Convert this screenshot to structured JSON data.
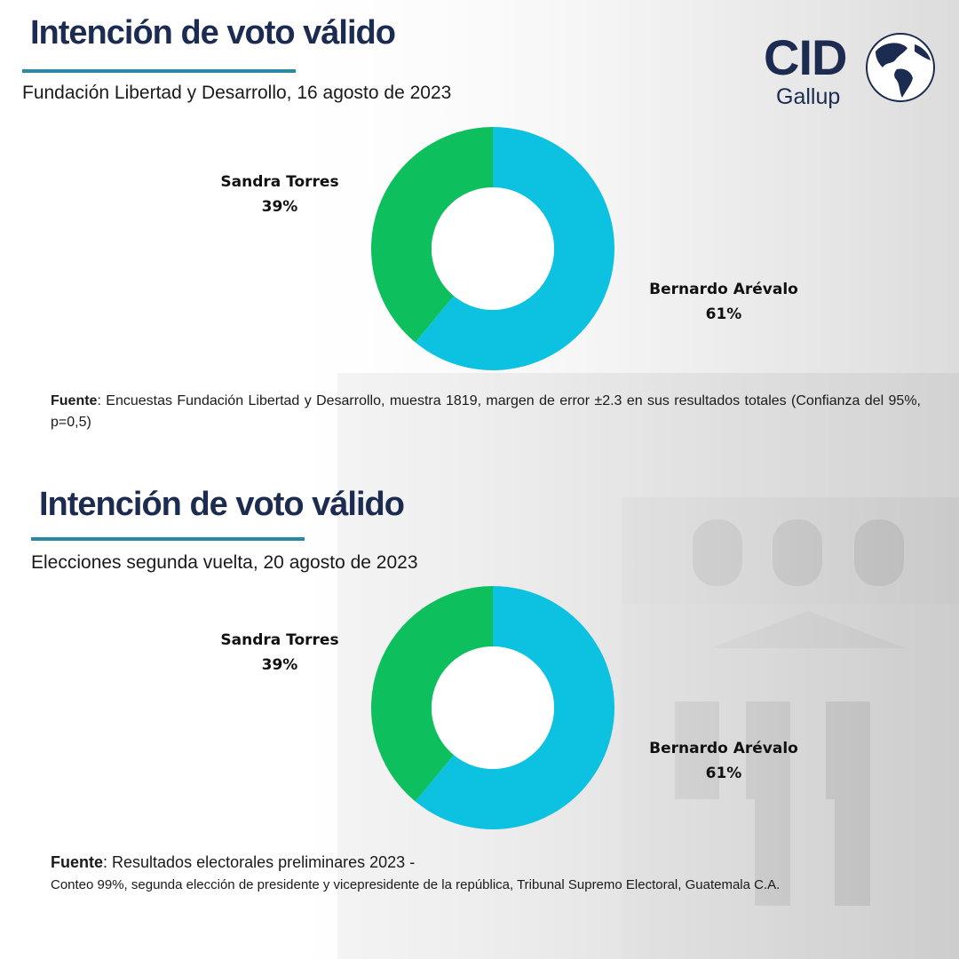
{
  "logo": {
    "main": "CID",
    "sub": "Gallup"
  },
  "colors": {
    "sandra": "#0dbf5d",
    "arevalo": "#0dc1e0",
    "title": "#1c2b50",
    "rule": "#2a8aa3"
  },
  "panels": [
    {
      "title": "Intención de voto válido",
      "subtitle": "Fundación Libertad y Desarrollo, 16 agosto de 2023",
      "source_label": "Fuente",
      "source_text": ": Encuestas Fundación Libertad y Desarrollo, muestra 1819, margen de error ±2.3 en sus resultados totales (Confianza del 95%, p=0,5)",
      "labels": [
        {
          "name": "Sandra Torres",
          "pct": "39%"
        },
        {
          "name": "Bernardo Arévalo",
          "pct": "61%"
        }
      ]
    },
    {
      "title": "Intención de voto válido",
      "subtitle": "Elecciones segunda vuelta, 20 agosto de 2023",
      "source_label": "Fuente",
      "source_text": ": Resultados electorales preliminares 2023 -",
      "source_text2": "Conteo 99%, segunda elección de presidente y vicepresidente de la república, Tribunal Supremo Electoral, Guatemala C.A.",
      "labels": [
        {
          "name": "Sandra Torres",
          "pct": "39%"
        },
        {
          "name": "Bernardo Arévalo",
          "pct": "61%"
        }
      ]
    }
  ],
  "chart_data": [
    {
      "type": "pie",
      "title": "Intención de voto válido",
      "subtitle": "Fundación Libertad y Desarrollo, 16 agosto de 2023",
      "categories": [
        "Bernardo Arévalo",
        "Sandra Torres"
      ],
      "values": [
        61,
        39
      ],
      "colors": [
        "#0dc1e0",
        "#0dbf5d"
      ],
      "donut": true
    },
    {
      "type": "pie",
      "title": "Intención de voto válido",
      "subtitle": "Elecciones segunda vuelta, 20 agosto de 2023",
      "categories": [
        "Bernardo Arévalo",
        "Sandra Torres"
      ],
      "values": [
        61,
        39
      ],
      "colors": [
        "#0dc1e0",
        "#0dbf5d"
      ],
      "donut": true
    }
  ]
}
